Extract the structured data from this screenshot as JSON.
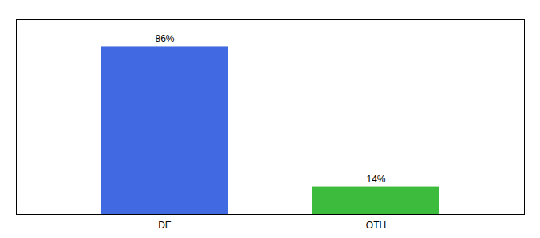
{
  "chart_data": {
    "type": "bar",
    "categories": [
      "DE",
      "OTH"
    ],
    "values": [
      86,
      14
    ],
    "value_labels": [
      "86%",
      "14%"
    ],
    "data_labels": true,
    "colors": [
      "#4169e1",
      "#3dbb3d"
    ],
    "ylim": [
      0,
      100
    ],
    "yticks": [],
    "tick_labels": "x"
  }
}
